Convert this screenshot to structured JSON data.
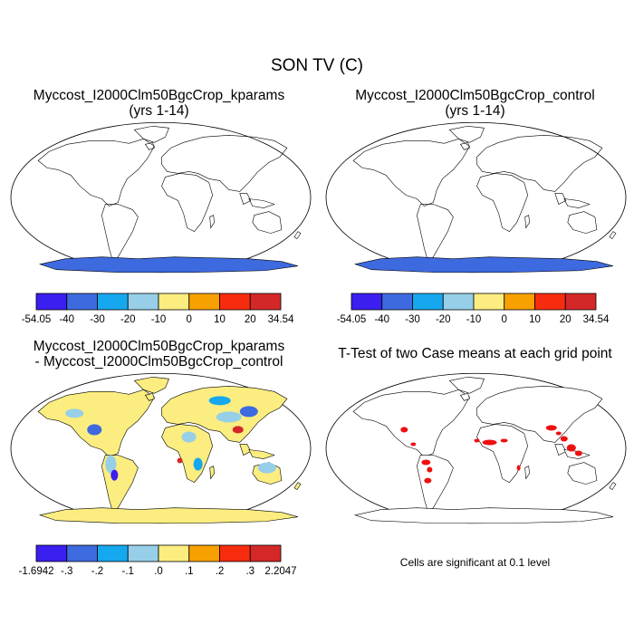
{
  "title": "SON TV (C)",
  "colors": {
    "absolute_scale": [
      "#3b1ef0",
      "#3e6ae0",
      "#16a8ee",
      "#97cfe8",
      "#fbed80",
      "#f7a000",
      "#f72c0e",
      "#d42828"
    ],
    "difference_scale": [
      "#3b1ef0",
      "#3e6ae0",
      "#16a8ee",
      "#97cfe8",
      "#fbed80",
      "#f7a000",
      "#f72c0e",
      "#d42828"
    ],
    "significant": "#ee1010",
    "land_outline": "#000000"
  },
  "panels": [
    {
      "title_line1": "Myccost_I2000Clm50BgcCrop_kparams",
      "title_line2": "(yrs 1-14)",
      "colorbar_labels": [
        "-54.05",
        "-40",
        "-30",
        "-20",
        "-10",
        "0",
        "10",
        "20",
        "34.54"
      ]
    },
    {
      "title_line1": "Myccost_I2000Clm50BgcCrop_control",
      "title_line2": "(yrs 1-14)",
      "colorbar_labels": [
        "-54.05",
        "-40",
        "-30",
        "-20",
        "-10",
        "0",
        "10",
        "20",
        "34.54"
      ]
    },
    {
      "title_line1": "Myccost_I2000Clm50BgcCrop_kparams",
      "title_line2": "- Myccost_I2000Clm50BgcCrop_control",
      "colorbar_labels": [
        "-1.6942",
        "-.3",
        "-.2",
        "-.1",
        ".0",
        ".1",
        ".2",
        ".3",
        "2.2047"
      ]
    },
    {
      "title_line1": "T-Test of two Case means at each grid point",
      "note": "Cells are significant at 0.1 level"
    }
  ]
}
